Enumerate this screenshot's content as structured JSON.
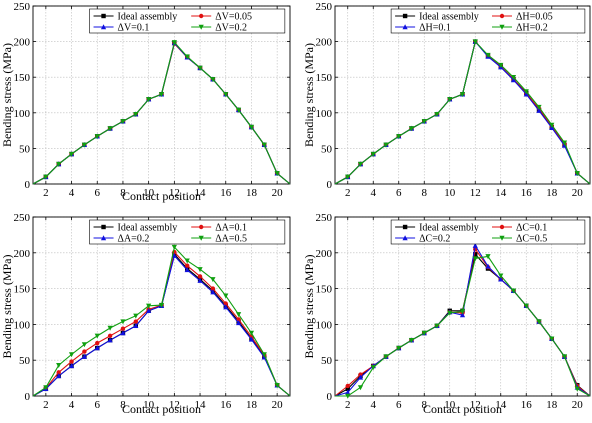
{
  "chart_data": [
    {
      "type": "line",
      "xlabel": "Contact position",
      "ylabel": "Bending stress (MPa)",
      "xlim": [
        1,
        21
      ],
      "ylim": [
        0,
        250
      ],
      "xticks": [
        2,
        4,
        6,
        8,
        10,
        12,
        14,
        16,
        18,
        20
      ],
      "yticks": [
        0,
        50,
        100,
        150,
        200,
        250
      ],
      "grid": true,
      "legend_position": "top-right",
      "series": [
        {
          "name": "Ideal assembly",
          "color": "#000000",
          "marker": "square",
          "x": [
            1,
            2,
            3,
            4,
            5,
            6,
            7,
            8,
            9,
            10,
            11,
            12,
            13,
            14,
            15,
            16,
            17,
            18,
            19,
            20,
            21
          ],
          "y": [
            0,
            10,
            28,
            42,
            55,
            67,
            78,
            88,
            98,
            119,
            126,
            198,
            178,
            163,
            147,
            126,
            104,
            80,
            55,
            15,
            0
          ]
        },
        {
          "name": "ΔV=0.05",
          "color": "#e01010",
          "marker": "circle",
          "x": [
            1,
            2,
            3,
            4,
            5,
            6,
            7,
            8,
            9,
            10,
            11,
            12,
            13,
            14,
            15,
            16,
            17,
            18,
            19,
            20,
            21
          ],
          "y": [
            0,
            10,
            28,
            42,
            55,
            67,
            78,
            88,
            98,
            119,
            126,
            197,
            178,
            163,
            147,
            126,
            104,
            80,
            55,
            15,
            0
          ]
        },
        {
          "name": "ΔV=0.1",
          "color": "#1010e0",
          "marker": "triangle",
          "x": [
            1,
            2,
            3,
            4,
            5,
            6,
            7,
            8,
            9,
            10,
            11,
            12,
            13,
            14,
            15,
            16,
            17,
            18,
            19,
            20,
            21
          ],
          "y": [
            0,
            10,
            28,
            42,
            55,
            67,
            78,
            88,
            98,
            119,
            126,
            198,
            178,
            163,
            147,
            126,
            104,
            80,
            55,
            15,
            0
          ]
        },
        {
          "name": "ΔV=0.2",
          "color": "#10a010",
          "marker": "triangle-down",
          "x": [
            1,
            2,
            3,
            4,
            5,
            6,
            7,
            8,
            9,
            10,
            11,
            12,
            13,
            14,
            15,
            16,
            17,
            18,
            19,
            20,
            21
          ],
          "y": [
            0,
            10,
            28,
            42,
            55,
            67,
            78,
            88,
            98,
            119,
            126,
            199,
            179,
            163,
            147,
            126,
            104,
            80,
            55,
            15,
            0
          ]
        }
      ]
    },
    {
      "type": "line",
      "xlabel": "",
      "ylabel": "Bending stress (MPa)",
      "xlim": [
        1,
        21
      ],
      "ylim": [
        0,
        250
      ],
      "xticks": [
        2,
        4,
        6,
        8,
        10,
        12,
        14,
        16,
        18,
        20
      ],
      "yticks": [
        0,
        50,
        100,
        150,
        200,
        250
      ],
      "grid": true,
      "legend_position": "top-right",
      "series": [
        {
          "name": "Ideal assembly",
          "color": "#000000",
          "marker": "square",
          "x": [
            1,
            2,
            3,
            4,
            5,
            6,
            7,
            8,
            9,
            10,
            11,
            12,
            13,
            14,
            15,
            16,
            17,
            18,
            19,
            20,
            21
          ],
          "y": [
            0,
            10,
            28,
            42,
            55,
            67,
            78,
            88,
            98,
            119,
            126,
            200,
            180,
            165,
            147,
            128,
            104,
            80,
            55,
            15,
            0
          ]
        },
        {
          "name": "ΔH=0.05",
          "color": "#e01010",
          "marker": "circle",
          "x": [
            1,
            2,
            3,
            4,
            5,
            6,
            7,
            8,
            9,
            10,
            11,
            12,
            13,
            14,
            15,
            16,
            17,
            18,
            19,
            20,
            21
          ],
          "y": [
            0,
            10,
            28,
            42,
            55,
            67,
            78,
            88,
            98,
            119,
            126,
            200,
            180,
            165,
            147,
            127,
            106,
            81,
            56,
            15,
            0
          ]
        },
        {
          "name": "ΔH=0.1",
          "color": "#1010e0",
          "marker": "triangle",
          "x": [
            1,
            2,
            3,
            4,
            5,
            6,
            7,
            8,
            9,
            10,
            11,
            12,
            13,
            14,
            15,
            16,
            17,
            18,
            19,
            20,
            21
          ],
          "y": [
            0,
            10,
            28,
            42,
            55,
            67,
            78,
            88,
            98,
            119,
            126,
            200,
            179,
            164,
            146,
            126,
            103,
            79,
            54,
            15,
            0
          ]
        },
        {
          "name": "ΔH=0.2",
          "color": "#10a010",
          "marker": "triangle-down",
          "x": [
            1,
            2,
            3,
            4,
            5,
            6,
            7,
            8,
            9,
            10,
            11,
            12,
            13,
            14,
            15,
            16,
            17,
            18,
            19,
            20,
            21
          ],
          "y": [
            0,
            10,
            28,
            42,
            55,
            67,
            78,
            88,
            98,
            119,
            126,
            200,
            181,
            167,
            150,
            130,
            108,
            83,
            58,
            15,
            0
          ]
        }
      ]
    },
    {
      "type": "line",
      "xlabel": "Contact position",
      "ylabel": "Bending stress (MPa)",
      "xlim": [
        1,
        21
      ],
      "ylim": [
        0,
        250
      ],
      "xticks": [
        2,
        4,
        6,
        8,
        10,
        12,
        14,
        16,
        18,
        20
      ],
      "yticks": [
        0,
        50,
        100,
        150,
        200,
        250
      ],
      "grid": true,
      "legend_position": "top-right",
      "series": [
        {
          "name": "Ideal assembly",
          "color": "#000000",
          "marker": "square",
          "x": [
            1,
            2,
            3,
            4,
            5,
            6,
            7,
            8,
            9,
            10,
            11,
            12,
            13,
            14,
            15,
            16,
            17,
            18,
            19,
            20,
            21
          ],
          "y": [
            0,
            10,
            28,
            42,
            55,
            67,
            78,
            88,
            98,
            119,
            126,
            198,
            178,
            163,
            147,
            126,
            104,
            80,
            55,
            15,
            0
          ]
        },
        {
          "name": "ΔA=0.1",
          "color": "#e01010",
          "marker": "circle",
          "x": [
            1,
            2,
            3,
            4,
            5,
            6,
            7,
            8,
            9,
            10,
            11,
            12,
            13,
            14,
            15,
            16,
            17,
            18,
            19,
            20,
            21
          ],
          "y": [
            0,
            11,
            33,
            48,
            62,
            74,
            84,
            94,
            104,
            121,
            127,
            201,
            182,
            167,
            150,
            129,
            107,
            83,
            57,
            15,
            0
          ]
        },
        {
          "name": "ΔA=0.2",
          "color": "#1010e0",
          "marker": "triangle",
          "x": [
            1,
            2,
            3,
            4,
            5,
            6,
            7,
            8,
            9,
            10,
            11,
            12,
            13,
            14,
            15,
            16,
            17,
            18,
            19,
            20,
            21
          ],
          "y": [
            0,
            10,
            28,
            42,
            55,
            67,
            78,
            88,
            98,
            119,
            126,
            196,
            176,
            161,
            145,
            124,
            102,
            79,
            54,
            15,
            0
          ]
        },
        {
          "name": "ΔA=0.5",
          "color": "#10a010",
          "marker": "triangle-down",
          "x": [
            1,
            2,
            3,
            4,
            5,
            6,
            7,
            8,
            9,
            10,
            11,
            12,
            13,
            14,
            15,
            16,
            17,
            18,
            19,
            20,
            21
          ],
          "y": [
            0,
            12,
            43,
            58,
            72,
            84,
            95,
            104,
            112,
            126,
            127,
            208,
            189,
            177,
            163,
            140,
            114,
            88,
            58,
            15,
            0
          ]
        }
      ]
    },
    {
      "type": "line",
      "xlabel": "Contact position",
      "ylabel": "Bending stress (MPa)",
      "xlim": [
        1,
        21
      ],
      "ylim": [
        0,
        250
      ],
      "xticks": [
        2,
        4,
        6,
        8,
        10,
        12,
        14,
        16,
        18,
        20
      ],
      "yticks": [
        0,
        50,
        100,
        150,
        200,
        250
      ],
      "grid": true,
      "legend_position": "top-right",
      "series": [
        {
          "name": "Ideal assembly",
          "color": "#000000",
          "marker": "square",
          "x": [
            1,
            2,
            3,
            4,
            5,
            6,
            7,
            8,
            9,
            10,
            11,
            12,
            13,
            14,
            15,
            16,
            17,
            18,
            19,
            20,
            21
          ],
          "y": [
            0,
            10,
            28,
            42,
            55,
            67,
            78,
            88,
            98,
            119,
            119,
            198,
            178,
            163,
            147,
            126,
            104,
            80,
            55,
            15,
            0
          ]
        },
        {
          "name": "ΔC=0.1",
          "color": "#e01010",
          "marker": "circle",
          "x": [
            1,
            2,
            3,
            4,
            5,
            6,
            7,
            8,
            9,
            10,
            11,
            12,
            13,
            14,
            15,
            16,
            17,
            18,
            19,
            20,
            21
          ],
          "y": [
            0,
            14,
            30,
            42,
            55,
            67,
            78,
            88,
            98,
            117,
            116,
            205,
            180,
            163,
            147,
            126,
            104,
            80,
            55,
            14,
            0
          ]
        },
        {
          "name": "ΔC=0.2",
          "color": "#1010e0",
          "marker": "triangle",
          "x": [
            1,
            2,
            3,
            4,
            5,
            6,
            7,
            8,
            9,
            10,
            11,
            12,
            13,
            14,
            15,
            16,
            17,
            18,
            19,
            20,
            21
          ],
          "y": [
            0,
            5,
            26,
            42,
            55,
            67,
            78,
            88,
            98,
            117,
            113,
            210,
            181,
            163,
            147,
            126,
            104,
            80,
            55,
            12,
            0
          ]
        },
        {
          "name": "ΔC=0.5",
          "color": "#10a010",
          "marker": "triangle-down",
          "x": [
            1,
            2,
            3,
            4,
            5,
            6,
            7,
            8,
            9,
            10,
            11,
            12,
            13,
            14,
            15,
            16,
            17,
            18,
            19,
            20,
            21
          ],
          "y": [
            0,
            0,
            12,
            40,
            55,
            67,
            78,
            88,
            98,
            116,
            118,
            192,
            195,
            168,
            147,
            126,
            104,
            80,
            55,
            10,
            0
          ]
        }
      ]
    }
  ]
}
